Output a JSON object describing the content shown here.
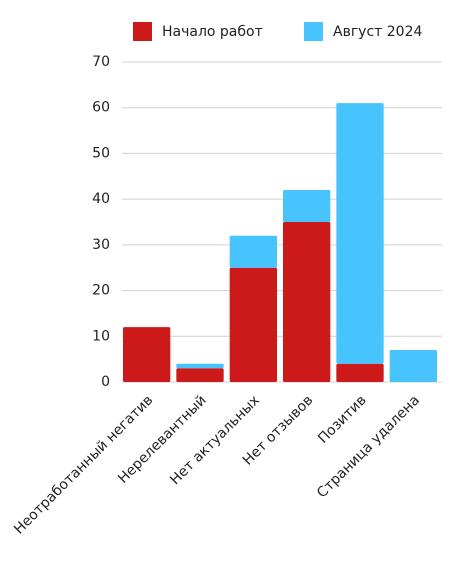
{
  "chart_data": {
    "type": "stacked_bar",
    "categories": [
      "Неотработанный негатив",
      "Нерелевантный",
      "Нет актуальных",
      "Нет отзывов",
      "Позитив",
      "Страница удалена"
    ],
    "series": [
      {
        "name": "Начало работ",
        "color": "#cc1a1a",
        "values": [
          12,
          3,
          25,
          35,
          4,
          0
        ]
      },
      {
        "name": "Август 2024",
        "color": "#47c4fe",
        "values": [
          0,
          1,
          7,
          7,
          57,
          7
        ]
      }
    ],
    "ylim": [
      0,
      70
    ],
    "yticks": [
      0,
      10,
      20,
      30,
      40,
      50,
      60,
      70
    ],
    "grid": true,
    "legend": "top"
  }
}
